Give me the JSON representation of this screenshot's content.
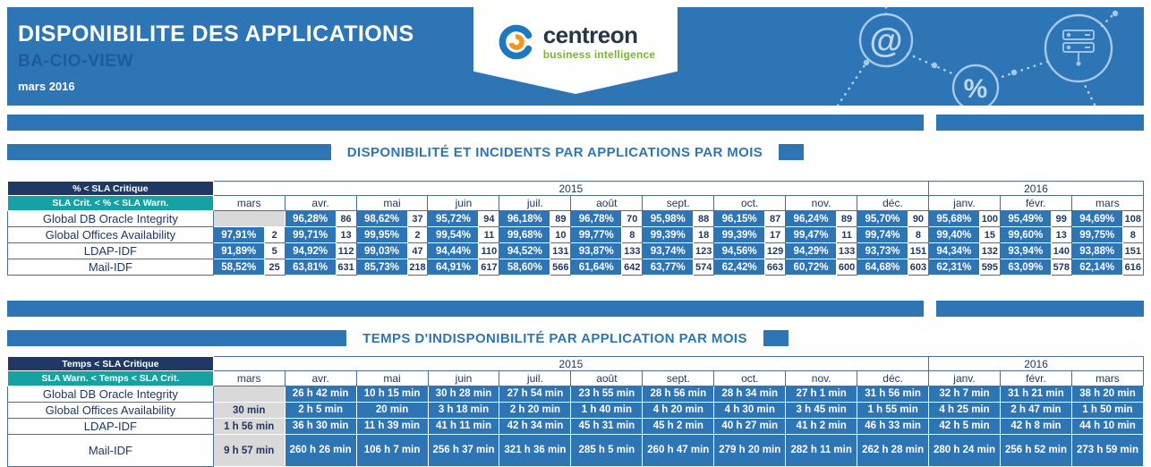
{
  "header": {
    "title": "DISPONIBILITE DES APPLICATIONS",
    "subtitle": "BA-CIO-VIEW",
    "period": "mars 2016",
    "logo": {
      "brand": "centreon",
      "tagline": "business intelligence"
    },
    "decor_icons": [
      "at-icon",
      "percent-icon",
      "server-icon"
    ]
  },
  "colors": {
    "banner_blue": "#2e75b6",
    "cell_blue": "#2e75b6",
    "legend_navy": "#1f3864",
    "legend_teal": "#16a2a2",
    "empty_gray": "#d9d9d9",
    "brand_green": "#76b82a",
    "brand_orange": "#f7941e",
    "brand_dark": "#253746"
  },
  "sections": [
    {
      "title": "DISPONIBILITÉ ET INCIDENTS PAR APPLICATIONS PAR MOIS",
      "type": "availability",
      "legend": [
        "% < SLA Critique",
        "SLA Crit. < % < SLA Warn."
      ],
      "year_groups": [
        {
          "label": "2015",
          "span": 10
        },
        {
          "label": "2016",
          "span": 3
        }
      ],
      "months": [
        "mars",
        "avr.",
        "mai",
        "juin",
        "juil.",
        "août",
        "sept.",
        "oct.",
        "nov.",
        "déc.",
        "janv.",
        "févr.",
        "mars"
      ],
      "rows": [
        {
          "label": "Global DB Oracle Integrity",
          "cells": [
            null,
            [
              "96,28%",
              "86"
            ],
            [
              "98,62%",
              "37"
            ],
            [
              "95,72%",
              "94"
            ],
            [
              "96,18%",
              "89"
            ],
            [
              "96,78%",
              "70"
            ],
            [
              "95,98%",
              "88"
            ],
            [
              "96,15%",
              "87"
            ],
            [
              "96,24%",
              "89"
            ],
            [
              "95,70%",
              "90"
            ],
            [
              "95,68%",
              "100"
            ],
            [
              "95,49%",
              "99"
            ],
            [
              "94,69%",
              "108"
            ]
          ]
        },
        {
          "label": "Global Offices Availability",
          "cells": [
            [
              "97,91%",
              "2"
            ],
            [
              "99,71%",
              "13"
            ],
            [
              "99,95%",
              "2"
            ],
            [
              "99,54%",
              "11"
            ],
            [
              "99,68%",
              "10"
            ],
            [
              "99,77%",
              "8"
            ],
            [
              "99,39%",
              "18"
            ],
            [
              "99,39%",
              "17"
            ],
            [
              "99,47%",
              "11"
            ],
            [
              "99,74%",
              "8"
            ],
            [
              "99,40%",
              "15"
            ],
            [
              "99,60%",
              "13"
            ],
            [
              "99,75%",
              "8"
            ]
          ]
        },
        {
          "label": "LDAP-IDF",
          "cells": [
            [
              "91,89%",
              "5"
            ],
            [
              "94,92%",
              "112"
            ],
            [
              "99,03%",
              "47"
            ],
            [
              "94,44%",
              "110"
            ],
            [
              "94,52%",
              "131"
            ],
            [
              "93,87%",
              "133"
            ],
            [
              "93,74%",
              "123"
            ],
            [
              "94,56%",
              "129"
            ],
            [
              "94,29%",
              "133"
            ],
            [
              "93,73%",
              "151"
            ],
            [
              "94,34%",
              "132"
            ],
            [
              "93,94%",
              "140"
            ],
            [
              "93,88%",
              "151"
            ]
          ]
        },
        {
          "label": "Mail-IDF",
          "cells": [
            [
              "58,52%",
              "25"
            ],
            [
              "63,81%",
              "631"
            ],
            [
              "85,73%",
              "218"
            ],
            [
              "64,91%",
              "617"
            ],
            [
              "58,60%",
              "566"
            ],
            [
              "61,64%",
              "642"
            ],
            [
              "63,77%",
              "574"
            ],
            [
              "62,42%",
              "663"
            ],
            [
              "60,72%",
              "600"
            ],
            [
              "64,68%",
              "603"
            ],
            [
              "62,31%",
              "595"
            ],
            [
              "63,09%",
              "578"
            ],
            [
              "62,14%",
              "616"
            ]
          ]
        }
      ]
    },
    {
      "title": "TEMPS D'INDISPONIBILITÉ PAR APPLICATION PAR MOIS",
      "type": "downtime",
      "legend": [
        "Temps < SLA Critique",
        "SLA Warn. < Temps < SLA Crit."
      ],
      "year_groups": [
        {
          "label": "2015",
          "span": 10
        },
        {
          "label": "2016",
          "span": 3
        }
      ],
      "months": [
        "mars",
        "avr.",
        "mai",
        "juin",
        "juil.",
        "août",
        "sept.",
        "oct.",
        "nov.",
        "déc.",
        "janv.",
        "févr.",
        "mars"
      ],
      "rows": [
        {
          "label": "Global DB Oracle Integrity",
          "cells": [
            null,
            "26 h 42 min",
            "10 h 15 min",
            "30 h 28 min",
            "27 h 54 min",
            "23 h 55 min",
            "28 h 56 min",
            "28 h 34 min",
            "27 h 1 min",
            "31 h 56 min",
            "32 h 7 min",
            "31 h 21 min",
            "38 h 20 min"
          ]
        },
        {
          "label": "Global Offices Availability",
          "cells": [
            {
              "value": "30 min",
              "gray": true
            },
            "2 h 5 min",
            "20 min",
            "3 h 18 min",
            "2 h 20 min",
            "1 h 40 min",
            "4 h 20 min",
            "4 h 30 min",
            "3 h 45 min",
            "1 h 55 min",
            "4 h 25 min",
            "2 h 47 min",
            "1 h 50 min"
          ]
        },
        {
          "label": "LDAP-IDF",
          "cells": [
            {
              "value": "1 h 56 min",
              "gray": true
            },
            "36 h 30 min",
            "11 h 39 min",
            "41 h 11 min",
            "42 h 34 min",
            "45 h 31 min",
            "45 h 2 min",
            "40 h 27 min",
            "41 h 2 min",
            "46 h 33 min",
            "42 h 5 min",
            "42 h 8 min",
            "44 h 10 min"
          ]
        },
        {
          "label": "Mail-IDF",
          "wrap": true,
          "cells": [
            {
              "value": "9 h 57 min",
              "gray": true
            },
            "260 h 26 min",
            "106 h 7 min",
            "256 h 37 min",
            "321 h 36 min",
            "285 h 5 min",
            "260 h 47 min",
            "279 h 20 min",
            "282 h 11 min",
            "262 h 28 min",
            "280 h 24 min",
            "256 h 52 min",
            "273 h 59 min"
          ]
        }
      ]
    }
  ]
}
